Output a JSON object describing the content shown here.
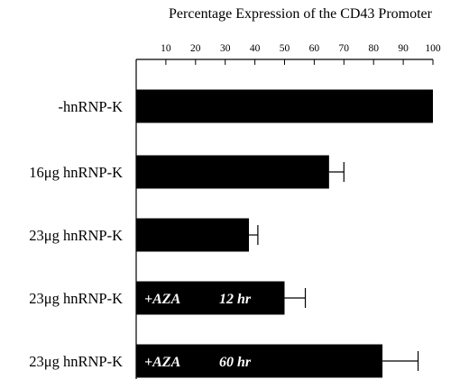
{
  "chart_data": {
    "type": "bar",
    "orientation": "horizontal",
    "title": "Percentage Expression of the CD43 Promoter",
    "xlim": [
      0,
      100
    ],
    "xticks": [
      10,
      20,
      30,
      40,
      50,
      60,
      70,
      80,
      90,
      100
    ],
    "axis_position": "top",
    "grid": false,
    "categories": [
      "-hnRNP-K",
      "16μg hnRNP-K",
      "23μg hnRNP-K",
      "23μg hnRNP-K",
      "23μg hnRNP-K"
    ],
    "values": [
      100,
      65,
      38,
      50,
      83
    ],
    "errors": [
      0,
      5,
      3,
      7,
      12
    ],
    "annotations": [
      {
        "bar": 3,
        "treatment": "+AZA",
        "time": "12 hr"
      },
      {
        "bar": 4,
        "treatment": "+AZA",
        "time": "60 hr"
      }
    ],
    "colors": {
      "bar": "#000000",
      "annotation_text": "#ffffff"
    }
  }
}
